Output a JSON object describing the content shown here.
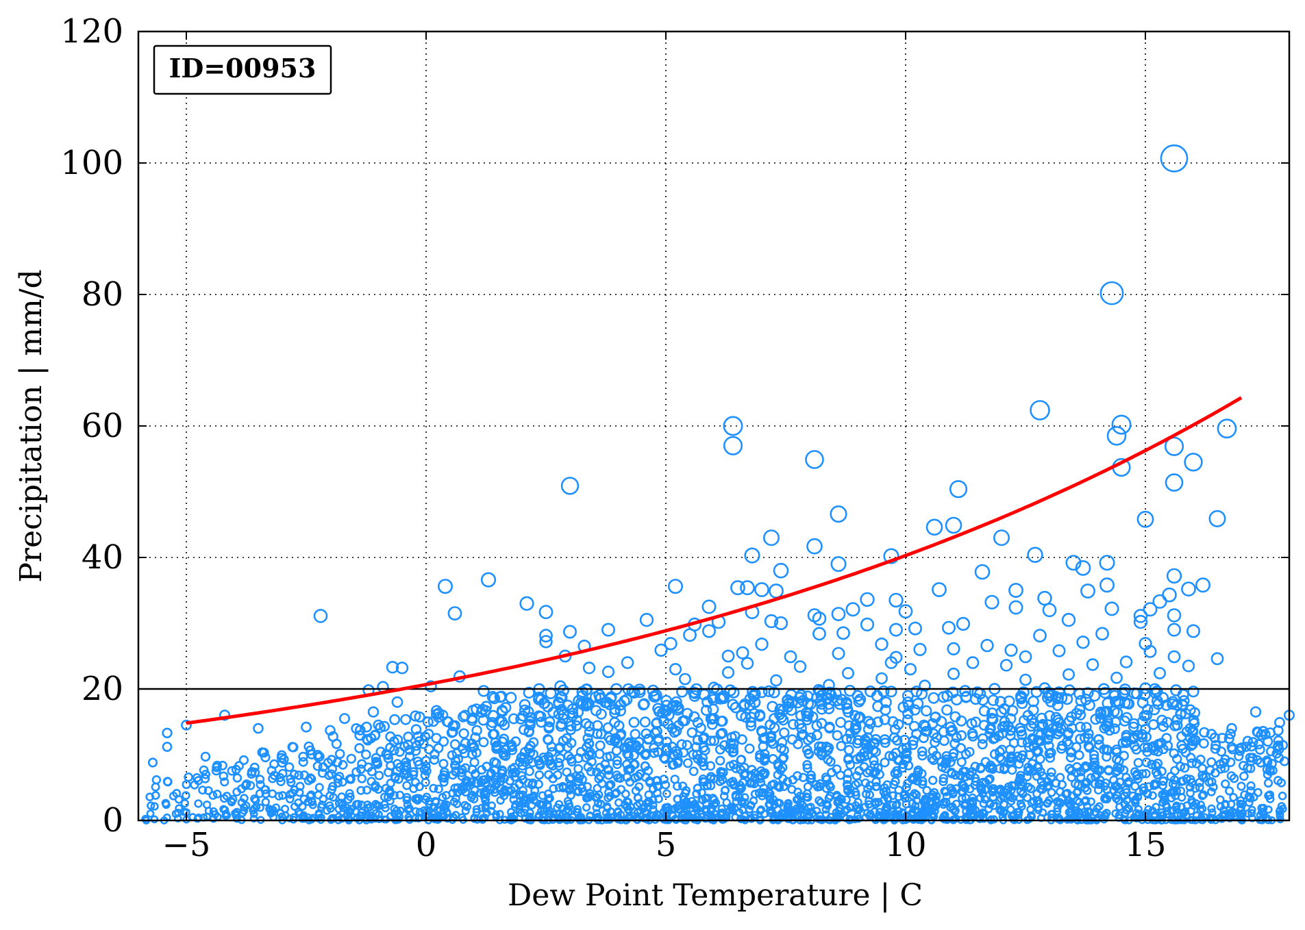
{
  "chart_data": {
    "type": "scatter",
    "annotation": "ID=00953",
    "xlabel": "Dew Point Temperature | C",
    "ylabel": "Precipitation | mm/d",
    "xlim": [
      -6,
      18
    ],
    "ylim": [
      0,
      120
    ],
    "xticks": [
      -5,
      0,
      5,
      10,
      15
    ],
    "xtick_labels": [
      "−5",
      "0",
      "5",
      "10",
      "15"
    ],
    "yticks": [
      0,
      20,
      40,
      60,
      80,
      100,
      120
    ],
    "ytick_labels": [
      "0",
      "20",
      "40",
      "60",
      "80",
      "100",
      "120"
    ],
    "grid": true,
    "threshold_line": {
      "y": 20,
      "color": "#000000"
    },
    "fit_curve": {
      "color": "#ff0000",
      "x": [
        -5,
        -3,
        -1,
        1,
        3,
        5,
        7,
        9,
        11,
        13,
        15,
        17
      ],
      "y": [
        14.8,
        16.7,
        19.2,
        22.3,
        25.9,
        30.3,
        35.7,
        41.9,
        49.0,
        56.5,
        61.0,
        64.3
      ]
    },
    "series": [
      {
        "color": "#1e90ff",
        "points": [
          [
            15.6,
            100.7
          ],
          [
            14.3,
            80.2
          ],
          [
            12.8,
            62.4
          ],
          [
            14.5,
            60.2
          ],
          [
            6.4,
            60.0
          ],
          [
            16.7,
            59.6
          ],
          [
            14.4,
            58.5
          ],
          [
            6.4,
            57.0
          ],
          [
            15.6,
            56.9
          ],
          [
            8.1,
            54.9
          ],
          [
            16.0,
            54.5
          ],
          [
            14.5,
            53.7
          ],
          [
            15.6,
            51.4
          ],
          [
            3.0,
            50.9
          ],
          [
            11.1,
            50.4
          ],
          [
            8.6,
            46.6
          ],
          [
            15.0,
            45.8
          ],
          [
            16.5,
            45.9
          ],
          [
            10.6,
            44.6
          ],
          [
            11.0,
            44.9
          ],
          [
            7.2,
            43.0
          ],
          [
            12.0,
            43.0
          ],
          [
            8.1,
            41.7
          ],
          [
            12.7,
            40.4
          ],
          [
            6.8,
            40.3
          ],
          [
            9.7,
            40.2
          ],
          [
            13.5,
            39.2
          ],
          [
            14.2,
            39.2
          ],
          [
            8.6,
            39.0
          ],
          [
            13.7,
            38.4
          ],
          [
            7.4,
            38.0
          ],
          [
            11.6,
            37.8
          ],
          [
            1.3,
            36.6
          ],
          [
            15.6,
            37.2
          ],
          [
            0.4,
            35.6
          ],
          [
            5.2,
            35.6
          ],
          [
            6.5,
            35.4
          ],
          [
            6.7,
            35.4
          ],
          [
            7.0,
            35.1
          ],
          [
            7.3,
            34.9
          ],
          [
            10.7,
            35.1
          ],
          [
            12.3,
            35.0
          ],
          [
            13.8,
            34.9
          ],
          [
            15.9,
            35.2
          ],
          [
            16.2,
            35.8
          ],
          [
            14.2,
            35.8
          ],
          [
            15.5,
            34.3
          ],
          [
            2.1,
            33.0
          ],
          [
            9.2,
            33.6
          ],
          [
            9.8,
            33.5
          ],
          [
            11.8,
            33.2
          ],
          [
            12.9,
            33.8
          ],
          [
            15.3,
            33.3
          ],
          [
            5.9,
            32.5
          ],
          [
            8.9,
            32.1
          ],
          [
            10.0,
            31.8
          ],
          [
            12.3,
            32.4
          ],
          [
            13.0,
            32.0
          ],
          [
            14.3,
            32.2
          ],
          [
            15.1,
            32.1
          ],
          [
            0.6,
            31.5
          ],
          [
            2.5,
            31.7
          ],
          [
            6.8,
            31.7
          ],
          [
            8.1,
            31.2
          ],
          [
            8.6,
            31.4
          ],
          [
            -2.2,
            31.1
          ],
          [
            14.9,
            31.1
          ],
          [
            15.6,
            31.2
          ],
          [
            8.2,
            30.7
          ],
          [
            4.6,
            30.5
          ],
          [
            6.1,
            30.2
          ],
          [
            7.2,
            30.3
          ],
          [
            7.4,
            30.0
          ],
          [
            9.2,
            29.8
          ],
          [
            11.2,
            29.9
          ],
          [
            13.4,
            30.5
          ],
          [
            14.9,
            30.2
          ],
          [
            5.6,
            29.8
          ],
          [
            3.8,
            29.0
          ],
          [
            5.9,
            28.8
          ],
          [
            9.8,
            29.0
          ],
          [
            10.2,
            29.2
          ],
          [
            10.9,
            29.3
          ],
          [
            15.6,
            29.0
          ],
          [
            16.0,
            28.8
          ],
          [
            3.0,
            28.7
          ],
          [
            8.2,
            28.4
          ],
          [
            8.7,
            28.5
          ],
          [
            2.5,
            28.1
          ],
          [
            5.5,
            28.2
          ],
          [
            12.8,
            28.1
          ],
          [
            14.1,
            28.4
          ],
          [
            2.5,
            27.2
          ],
          [
            3.3,
            26.5
          ],
          [
            5.1,
            26.9
          ],
          [
            7.0,
            26.8
          ],
          [
            9.5,
            26.8
          ],
          [
            11.0,
            26.1
          ],
          [
            11.7,
            26.6
          ],
          [
            13.7,
            27.1
          ],
          [
            15.0,
            26.9
          ],
          [
            4.9,
            25.9
          ],
          [
            6.6,
            25.5
          ],
          [
            8.6,
            25.4
          ],
          [
            10.3,
            26.0
          ],
          [
            12.2,
            25.9
          ],
          [
            13.2,
            25.8
          ],
          [
            15.1,
            25.7
          ],
          [
            2.9,
            25.0
          ],
          [
            6.3,
            25.0
          ],
          [
            7.6,
            24.9
          ],
          [
            9.8,
            24.8
          ],
          [
            12.5,
            24.9
          ],
          [
            15.6,
            24.9
          ],
          [
            16.5,
            24.6
          ],
          [
            4.2,
            24.0
          ],
          [
            6.7,
            23.9
          ],
          [
            9.7,
            24.0
          ],
          [
            11.4,
            24.0
          ],
          [
            14.6,
            24.1
          ],
          [
            -0.7,
            23.3
          ],
          [
            -0.5,
            23.2
          ],
          [
            3.4,
            23.2
          ],
          [
            5.2,
            23.0
          ],
          [
            7.8,
            23.4
          ],
          [
            10.1,
            23.0
          ],
          [
            12.1,
            23.6
          ],
          [
            13.9,
            23.7
          ],
          [
            15.9,
            23.5
          ],
          [
            3.8,
            22.6
          ],
          [
            6.3,
            22.5
          ],
          [
            8.8,
            22.4
          ],
          [
            11.0,
            22.3
          ],
          [
            13.4,
            22.2
          ],
          [
            15.3,
            22.4
          ],
          [
            0.7,
            21.9
          ],
          [
            5.4,
            21.5
          ],
          [
            7.3,
            21.3
          ],
          [
            9.5,
            21.6
          ],
          [
            12.5,
            21.4
          ],
          [
            14.4,
            21.7
          ],
          [
            -0.9,
            20.3
          ],
          [
            0.1,
            20.4
          ],
          [
            2.8,
            20.4
          ],
          [
            6.0,
            20.2
          ],
          [
            8.4,
            20.6
          ],
          [
            10.4,
            20.5
          ],
          [
            12.9,
            20.1
          ],
          [
            15.0,
            20.1
          ],
          [
            -1.2,
            19.8
          ],
          [
            1.2,
            19.7
          ],
          [
            4.3,
            19.6
          ],
          [
            7.0,
            19.5
          ],
          [
            9.7,
            19.6
          ],
          [
            11.5,
            19.5
          ],
          [
            13.8,
            19.4
          ],
          [
            16.0,
            19.6
          ],
          [
            -5.0,
            14.5
          ],
          [
            -4.2,
            16.0
          ],
          [
            -3.5,
            14.0
          ],
          [
            -2.5,
            14.2
          ],
          [
            -1.7,
            15.5
          ],
          [
            -1.1,
            16.5
          ],
          [
            -0.6,
            18.0
          ],
          [
            17.3,
            16.5
          ],
          [
            17.8,
            14.9
          ],
          [
            18.0,
            16.0
          ],
          [
            -5.7,
            8.8
          ],
          [
            -5.4,
            13.3
          ],
          [
            -5.4,
            11.2
          ],
          [
            -2.0,
            13.7
          ],
          [
            -4.6,
            9.7
          ],
          [
            -3.9,
            8.3
          ],
          [
            16.8,
            14.0
          ],
          [
            17.5,
            13.1
          ],
          [
            17.1,
            11.2
          ],
          [
            17.9,
            9.0
          ],
          [
            17.6,
            7.5
          ],
          [
            17.0,
            5.2
          ]
        ]
      }
    ]
  }
}
